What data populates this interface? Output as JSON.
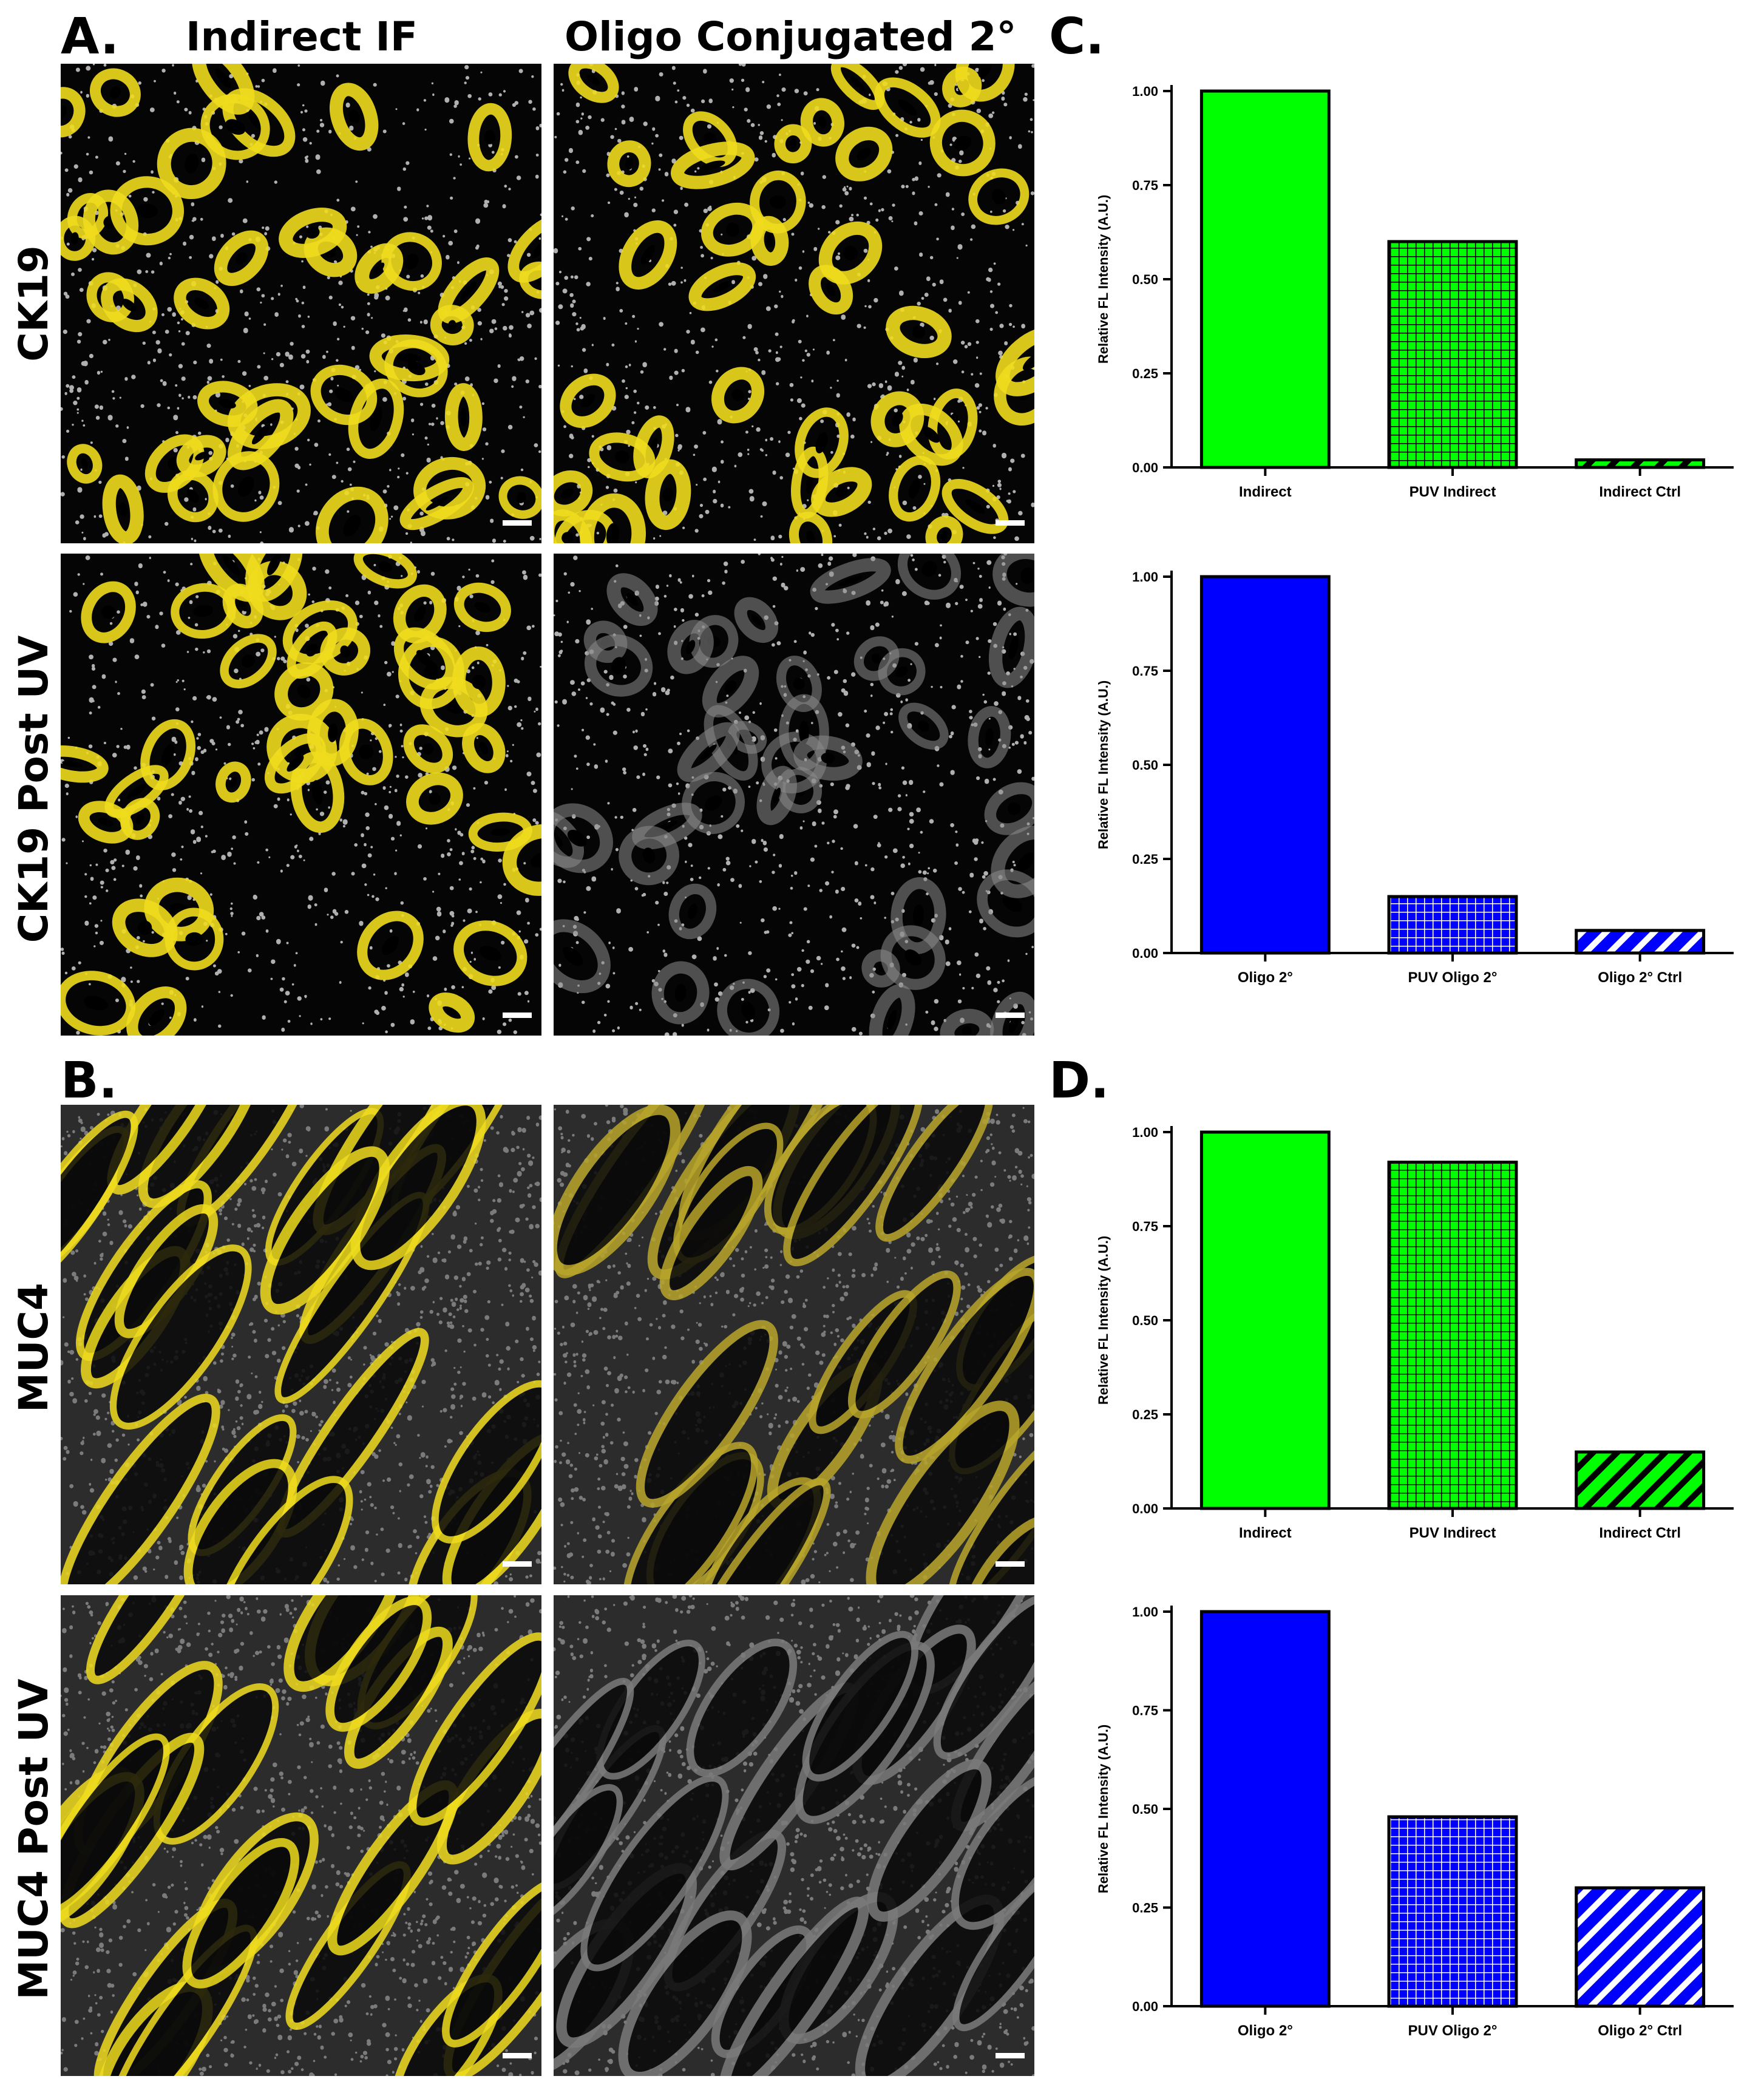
{
  "figure": {
    "panel_labels": [
      "A.",
      "B.",
      "C.",
      "D."
    ],
    "column_titles": [
      "Indirect IF",
      "Oligo Conjugated 2°"
    ],
    "row_labels": [
      "CK19",
      "CK19 Post UV",
      "MUC4",
      "MUC4 Post UV"
    ],
    "colors": {
      "indirect": "#00ff00",
      "oligo": "#0000ff",
      "stain_yellow": "#f2e21a",
      "nuclei": "#d8d8d8",
      "background": "#000000"
    }
  },
  "chart_data": [
    {
      "type": "bar",
      "panel": "C",
      "categories": [
        "Indirect",
        "PUV Indirect",
        "Indirect Ctrl"
      ],
      "values": [
        1.0,
        0.6,
        0.02
      ],
      "patterns": [
        "solid",
        "grid",
        "diagonal"
      ],
      "color": "#00ff00",
      "ylabel": "Relative FL Intensity (A.U.)",
      "ylim": [
        0,
        1.0
      ],
      "yticks": [
        "0.00",
        "0.25",
        "0.50",
        "0.75",
        "1.00"
      ]
    },
    {
      "type": "bar",
      "panel": "C",
      "categories": [
        "Oligo 2°",
        "PUV Oligo 2°",
        "Oligo 2° Ctrl"
      ],
      "values": [
        1.0,
        0.15,
        0.06
      ],
      "patterns": [
        "solid",
        "grid",
        "diagonal"
      ],
      "color": "#0000ff",
      "ylabel": "Relative FL Intensity (A.U.)",
      "ylim": [
        0,
        1.0
      ],
      "yticks": [
        "0.00",
        "0.25",
        "0.50",
        "0.75",
        "1.00"
      ]
    },
    {
      "type": "bar",
      "panel": "D",
      "categories": [
        "Indirect",
        "PUV Indirect",
        "Indirect Ctrl"
      ],
      "values": [
        1.0,
        0.92,
        0.15
      ],
      "patterns": [
        "solid",
        "grid",
        "diagonal"
      ],
      "color": "#00ff00",
      "ylabel": "Relative FL Intensity (A.U.)",
      "ylim": [
        0,
        1.0
      ],
      "yticks": [
        "0.00",
        "0.25",
        "0.50",
        "0.75",
        "1.00"
      ]
    },
    {
      "type": "bar",
      "panel": "D",
      "categories": [
        "Oligo 2°",
        "PUV Oligo 2°",
        "Oligo 2° Ctrl"
      ],
      "values": [
        1.0,
        0.48,
        0.3
      ],
      "patterns": [
        "solid",
        "grid",
        "diagonal"
      ],
      "color": "#0000ff",
      "ylabel": "Relative FL Intensity (A.U.)",
      "ylim": [
        0,
        1.0
      ],
      "yticks": [
        "0.00",
        "0.25",
        "0.50",
        "0.75",
        "1.00"
      ]
    }
  ]
}
